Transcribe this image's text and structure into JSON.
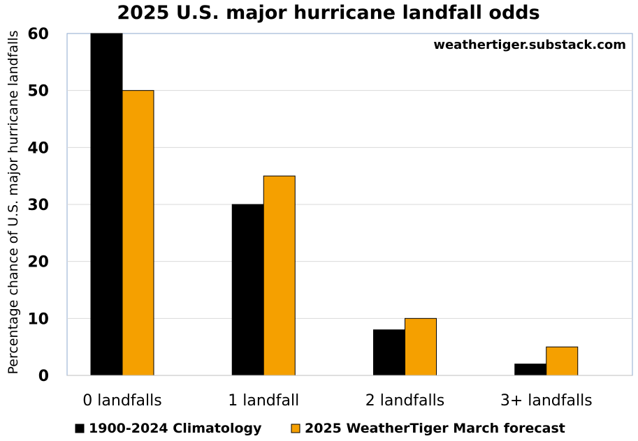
{
  "chart_data": {
    "type": "bar",
    "title": "2025 U.S. major hurricane landfall odds",
    "annotation": "weathertiger.substack.com",
    "xlabel": "",
    "ylabel": "Percentage chance of U.S. major hurricane landfalls",
    "ylim": [
      0,
      60
    ],
    "yticks": [
      "0",
      "10",
      "20",
      "30",
      "40",
      "50",
      "60"
    ],
    "grid": true,
    "legend_position": "bottom",
    "categories": [
      "0 landfalls",
      "1 landfall",
      "2 landfalls",
      "3+ landfalls"
    ],
    "series": [
      {
        "name": "1900-2024 Climatology",
        "color": "#000000",
        "values": [
          60,
          30,
          8,
          2
        ]
      },
      {
        "name": "2025 WeatherTiger March forecast",
        "color": "#f5a000",
        "values": [
          50,
          35,
          10,
          5
        ]
      }
    ]
  }
}
